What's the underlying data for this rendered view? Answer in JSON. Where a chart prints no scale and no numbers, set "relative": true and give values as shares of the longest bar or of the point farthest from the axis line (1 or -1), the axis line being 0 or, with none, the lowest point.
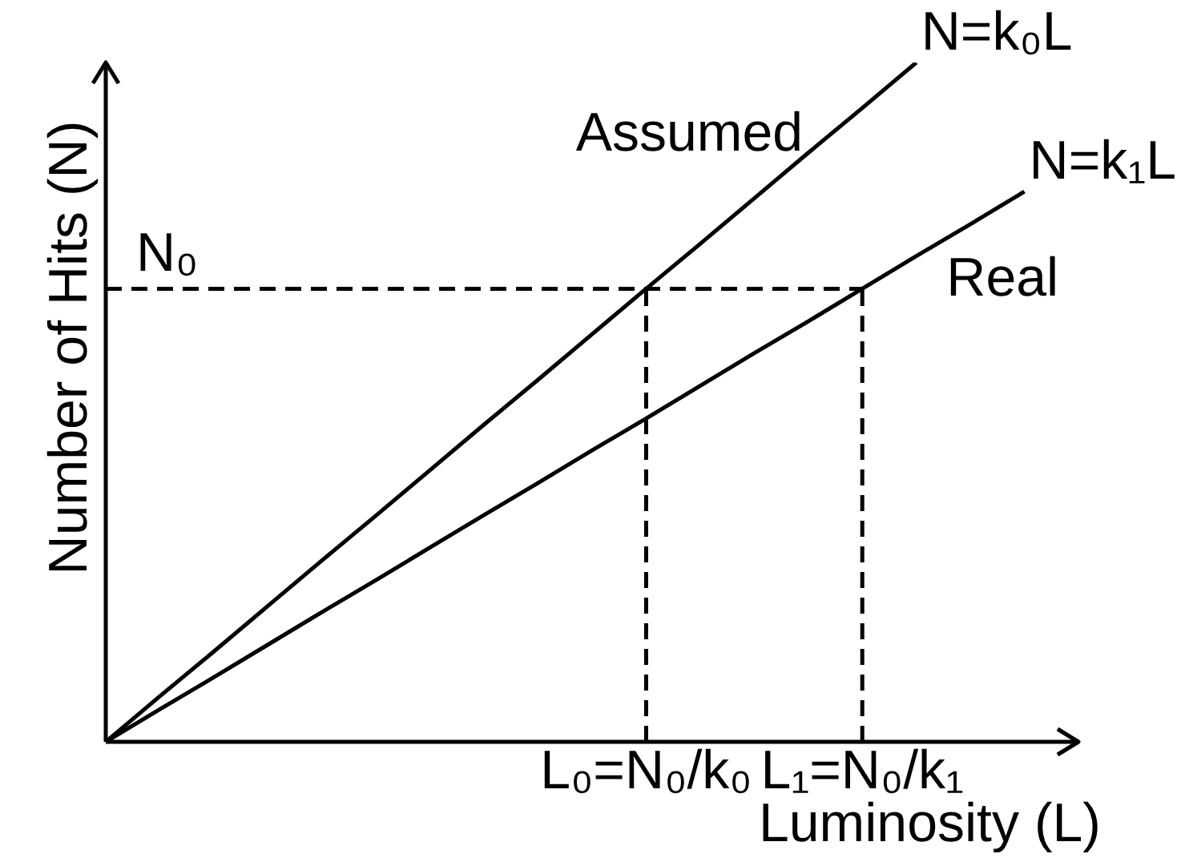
{
  "chart_data": {
    "type": "line",
    "relative": true,
    "xlabel": "Luminosity (L)",
    "ylabel": "Number of Hits (N)",
    "line_style": "solid",
    "categories": [
      null,
      null,
      null,
      null,
      null,
      null,
      null,
      null,
      null,
      null,
      "L₀=N₀/k₀",
      null,
      null,
      null,
      "L₁=N₀/k₁",
      null,
      null,
      null,
      null
    ],
    "series": [
      {
        "name": "Assumed",
        "color": "#000000",
        "values": [
          0,
          0.067,
          0.133,
          0.2,
          0.267,
          0.333,
          0.4,
          0.467,
          0.533,
          0.6,
          0.667,
          0.733,
          0.8,
          0.867,
          0.933,
          1,
          null,
          null,
          null
        ]
      },
      {
        "name": "Real",
        "color": "#000000",
        "values": [
          0,
          0.048,
          0.095,
          0.143,
          0.191,
          0.238,
          0.286,
          0.334,
          0.381,
          0.429,
          0.476,
          0.524,
          0.572,
          0.619,
          0.667,
          0.715,
          0.762,
          0.81,
          null
        ]
      }
    ],
    "ref_lines": [
      {
        "axis": "y",
        "value": 0.667,
        "label": "N₀",
        "color": "#000000",
        "line_style": "dashed"
      },
      {
        "axis": "x",
        "value": "L₀=N₀/k₀",
        "color": "#000000",
        "line_style": "dashed"
      },
      {
        "axis": "x",
        "value": "L₁=N₀/k₁",
        "color": "#000000",
        "line_style": "dashed"
      }
    ],
    "annotations": [
      "N=k₀L",
      "N=k₁L"
    ]
  }
}
